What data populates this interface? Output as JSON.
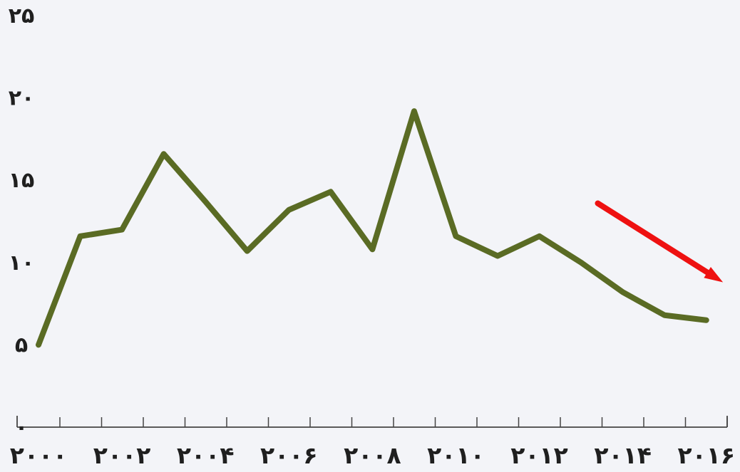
{
  "chart_data": {
    "type": "line",
    "title": "",
    "xlabel": "",
    "ylabel": "",
    "x": [
      2000,
      2001,
      2002,
      2003,
      2004,
      2005,
      2006,
      2007,
      2008,
      2009,
      2010,
      2011,
      2012,
      2013,
      2014,
      2015,
      2016
    ],
    "series": [
      {
        "values": [
          5.0,
          11.6,
          12.0,
          16.6,
          13.7,
          10.7,
          13.2,
          14.3,
          10.8,
          19.2,
          11.6,
          10.4,
          11.6,
          10.0,
          8.2,
          6.8,
          6.5
        ]
      }
    ],
    "ylim": [
      0,
      25
    ],
    "xlim": [
      2000,
      2016.5
    ],
    "y_ticks": [
      {
        "value": 0,
        "label": "۰"
      },
      {
        "value": 5,
        "label": "۵"
      },
      {
        "value": 10,
        "label": "۱۰"
      },
      {
        "value": 15,
        "label": "۱۵"
      },
      {
        "value": 20,
        "label": "۲۰"
      },
      {
        "value": 25,
        "label": "۲۵"
      }
    ],
    "x_ticks": [
      {
        "value": 2000,
        "label": "۲۰۰۰"
      },
      {
        "value": 2002,
        "label": "۲۰۰۲"
      },
      {
        "value": 2004,
        "label": "۲۰۰۴"
      },
      {
        "value": 2006,
        "label": "۲۰۰۶"
      },
      {
        "value": 2008,
        "label": "۲۰۰۸"
      },
      {
        "value": 2010,
        "label": "۲۰۱۰"
      },
      {
        "value": 2012,
        "label": "۲۰۱۲"
      },
      {
        "value": 2014,
        "label": "۲۰۱۴"
      },
      {
        "value": 2016,
        "label": "۲۰۱۶"
      }
    ],
    "minor_x_tick_count": 17,
    "grid": false,
    "line_color": "#5a6b24",
    "annotation": {
      "type": "arrow",
      "direction": "down-right",
      "color": "#ee1111",
      "from": {
        "x": 2013.4,
        "y": 13.6
      },
      "to": {
        "x": 2016.4,
        "y": 8.8
      }
    }
  }
}
